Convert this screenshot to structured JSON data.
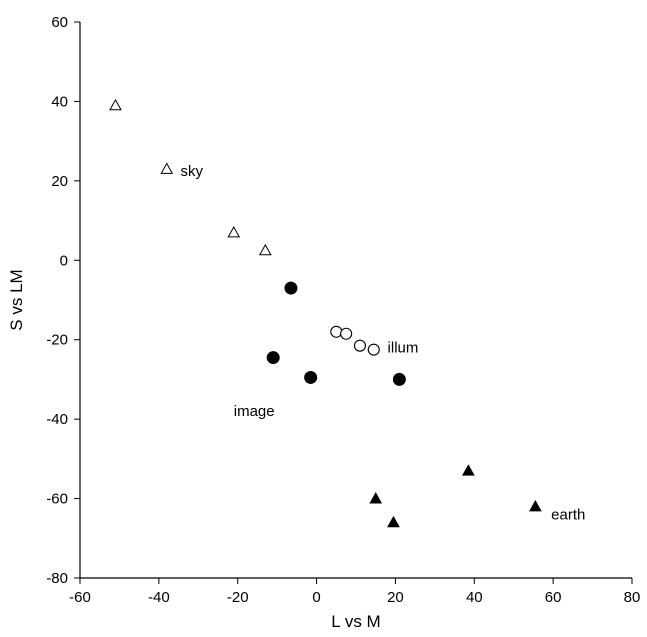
{
  "chart_data": {
    "type": "scatter",
    "title": "",
    "xlabel": "L vs M",
    "ylabel": "S vs LM",
    "xlim": [
      -60,
      80
    ],
    "ylim": [
      -80,
      60
    ],
    "xticks": [
      -60,
      -40,
      -20,
      0,
      20,
      40,
      60,
      80
    ],
    "yticks": [
      -80,
      -60,
      -40,
      -20,
      0,
      20,
      40,
      60
    ],
    "grid": false,
    "series": [
      {
        "name": "sky",
        "marker": "triangle-open",
        "points": [
          {
            "x": -51,
            "y": 39
          },
          {
            "x": -38,
            "y": 23
          },
          {
            "x": -21,
            "y": 7
          },
          {
            "x": -13,
            "y": 2.5
          }
        ]
      },
      {
        "name": "illum",
        "marker": "circle-open",
        "points": [
          {
            "x": 5,
            "y": -18
          },
          {
            "x": 7.5,
            "y": -18.5
          },
          {
            "x": 11,
            "y": -21.5
          },
          {
            "x": 14.5,
            "y": -22.5
          }
        ]
      },
      {
        "name": "image",
        "marker": "circle-filled",
        "points": [
          {
            "x": -6.5,
            "y": -7
          },
          {
            "x": -11,
            "y": -24.5
          },
          {
            "x": -1.5,
            "y": -29.5
          },
          {
            "x": 21,
            "y": -30
          }
        ]
      },
      {
        "name": "earth",
        "marker": "triangle-filled",
        "points": [
          {
            "x": 15,
            "y": -60
          },
          {
            "x": 19.5,
            "y": -66
          },
          {
            "x": 38.5,
            "y": -53
          },
          {
            "x": 55.5,
            "y": -62
          }
        ]
      }
    ],
    "annotations": [
      {
        "text": "sky",
        "x": -34.5,
        "y": 22.5
      },
      {
        "text": "illum",
        "x": 18,
        "y": -22
      },
      {
        "text": "image",
        "x": -21,
        "y": -38
      },
      {
        "text": "earth",
        "x": 59.5,
        "y": -64
      }
    ]
  }
}
